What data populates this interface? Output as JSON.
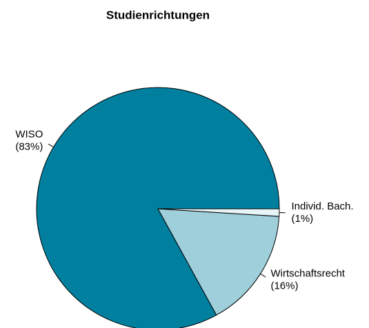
{
  "chart_data": {
    "type": "pie",
    "title": "Studienrichtungen",
    "categories": [
      "WISO",
      "Wirtschaftsrecht",
      "Individ. Bach."
    ],
    "values": [
      83,
      16,
      1
    ],
    "value_labels": [
      "(83%)",
      "(16%)",
      "(1%)"
    ],
    "colors": [
      "#007f9f",
      "#9ecfdb",
      "#e6f4f7"
    ]
  }
}
